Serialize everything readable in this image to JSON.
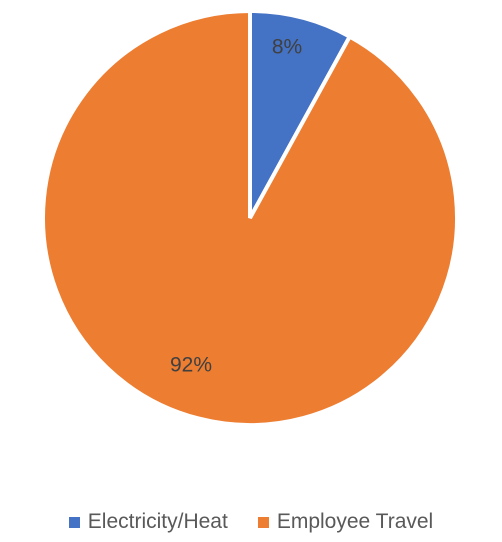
{
  "chart_data": {
    "type": "pie",
    "categories": [
      "Electricity/Heat",
      "Employee Travel"
    ],
    "values": [
      8,
      92
    ],
    "data_labels": [
      "8%",
      "92%"
    ],
    "colors": [
      "#4472C4",
      "#ED7D31"
    ],
    "legend_placement": "bottom",
    "start_angle": "12 o'clock",
    "direction": "clockwise"
  }
}
